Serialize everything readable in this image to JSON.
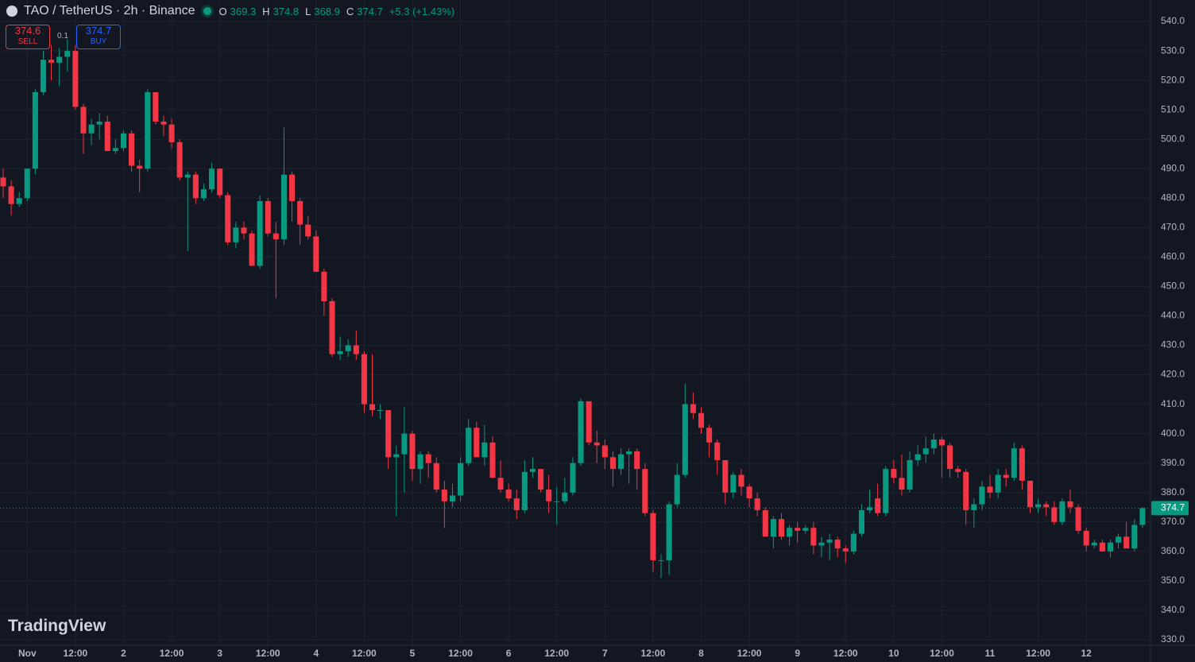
{
  "chart_data": {
    "type": "candlestick",
    "symbol": "TAO / TetherUS · 2h · Binance",
    "ohlc_header": [
      {
        "label": "O",
        "value": 369.3
      },
      {
        "label": "H",
        "value": 374.8
      },
      {
        "label": "L",
        "value": 368.9
      },
      {
        "label": "C",
        "value": 374.7
      }
    ],
    "change": "+5.3 (+1.43%)",
    "sell": {
      "price": 374.6,
      "label": "SELL"
    },
    "buy": {
      "price": 374.7,
      "label": "BUY"
    },
    "spread": 0.1,
    "brand": "TradingView",
    "last_price": 374.7,
    "up_color": "#089981",
    "down_color": "#f23645",
    "grid": true,
    "ylim": [
      328.1,
      547.3
    ],
    "yticks": [
      {
        "value": 330,
        "label": "330.0"
      },
      {
        "value": 340,
        "label": "340.0"
      },
      {
        "value": 350,
        "label": "350.0"
      },
      {
        "value": 360,
        "label": "360.0"
      },
      {
        "value": 370,
        "label": "370.0"
      },
      {
        "value": 380,
        "label": "380.0"
      },
      {
        "value": 390,
        "label": "390.0"
      },
      {
        "value": 400,
        "label": "400.0"
      },
      {
        "value": 410,
        "label": "410.0"
      },
      {
        "value": 420,
        "label": "420.0"
      },
      {
        "value": 430,
        "label": "430.0"
      },
      {
        "value": 440,
        "label": "440.0"
      },
      {
        "value": 450,
        "label": "450.0"
      },
      {
        "value": 460,
        "label": "460.0"
      },
      {
        "value": 470,
        "label": "470.0"
      },
      {
        "value": 480,
        "label": "480.0"
      },
      {
        "value": 490,
        "label": "490.0"
      },
      {
        "value": 500,
        "label": "500.0"
      },
      {
        "value": 510,
        "label": "510.0"
      },
      {
        "value": 520,
        "label": "520.0"
      },
      {
        "value": 530,
        "label": "530.0"
      },
      {
        "value": 540,
        "label": "540.0"
      }
    ],
    "xticks": [
      {
        "value": 3,
        "label": "Nov"
      },
      {
        "value": 9,
        "label": "12:00"
      },
      {
        "value": 15,
        "label": "2"
      },
      {
        "value": 21,
        "label": "12:00"
      },
      {
        "value": 27,
        "label": "3"
      },
      {
        "value": 33,
        "label": "12:00"
      },
      {
        "value": 39,
        "label": "4"
      },
      {
        "value": 45,
        "label": "12:00"
      },
      {
        "value": 51,
        "label": "5"
      },
      {
        "value": 57,
        "label": "12:00"
      },
      {
        "value": 63,
        "label": "6"
      },
      {
        "value": 69,
        "label": "12:00"
      },
      {
        "value": 75,
        "label": "7"
      },
      {
        "value": 81,
        "label": "12:00"
      },
      {
        "value": 87,
        "label": "8"
      },
      {
        "value": 93,
        "label": "12:00"
      },
      {
        "value": 99,
        "label": "9"
      },
      {
        "value": 105,
        "label": "12:00"
      },
      {
        "value": 111,
        "label": "10"
      },
      {
        "value": 117,
        "label": "12:00"
      },
      {
        "value": 123,
        "label": "11"
      },
      {
        "value": 129,
        "label": "12:00"
      },
      {
        "value": 135,
        "label": "12"
      }
    ],
    "open": [
      487,
      484,
      478,
      480,
      490,
      516,
      527,
      526,
      528,
      530,
      511,
      502,
      505,
      506,
      496,
      497,
      502,
      491,
      490,
      516,
      506,
      505,
      499,
      487,
      488,
      480,
      483,
      490,
      481,
      465,
      470,
      468,
      457,
      479,
      468,
      466,
      488,
      479,
      471,
      467,
      455,
      445,
      427,
      428,
      430,
      427,
      410,
      408,
      408,
      392,
      393,
      400,
      388,
      393,
      390,
      381,
      377,
      379,
      390,
      402,
      392,
      397,
      385,
      381,
      378,
      374,
      387,
      388,
      381,
      377,
      377,
      380,
      390,
      411,
      397,
      396,
      392,
      388,
      393,
      394,
      388,
      373,
      357,
      357,
      376,
      386,
      410,
      407,
      402,
      397,
      391,
      380,
      386,
      382,
      378,
      374,
      365,
      371,
      365,
      368,
      367,
      368,
      362,
      363,
      364,
      361,
      360,
      366,
      374,
      378,
      373,
      388,
      385,
      381,
      391,
      393,
      395,
      398,
      396,
      388,
      387,
      374,
      376,
      382,
      380,
      386,
      385,
      395,
      384,
      375,
      376,
      375,
      370,
      377,
      375,
      367,
      362,
      363,
      360,
      363,
      365,
      361,
      369
    ],
    "high": [
      490,
      486,
      482,
      490,
      517,
      530,
      532,
      531,
      534,
      532,
      512,
      507,
      509,
      508,
      500,
      503,
      503,
      493,
      517,
      516,
      508,
      507,
      500,
      489,
      489,
      485,
      492,
      490,
      482,
      472,
      472,
      469,
      481,
      480,
      472,
      504,
      489,
      480,
      474,
      469,
      456,
      446,
      433,
      432,
      435,
      428,
      427,
      410,
      408,
      396,
      409,
      401,
      394,
      394,
      392,
      384,
      383,
      392,
      405,
      404,
      403,
      399,
      391,
      383,
      381,
      391,
      392,
      388,
      386,
      382,
      385,
      392,
      412,
      411,
      401,
      398,
      394,
      395,
      395,
      395,
      390,
      374,
      359,
      377,
      390,
      417,
      414,
      409,
      403,
      398,
      391,
      387,
      388,
      383,
      380,
      375,
      372,
      373,
      369,
      370,
      369,
      370,
      365,
      366,
      365,
      362,
      367,
      376,
      381,
      383,
      389,
      391,
      393,
      394,
      396,
      399,
      400,
      399,
      397,
      389,
      388,
      378,
      384,
      386,
      388,
      388,
      397,
      396,
      384,
      378,
      377,
      377,
      378,
      381,
      376,
      368,
      364,
      364,
      364,
      366,
      370,
      371,
      375
    ],
    "low": [
      480,
      474,
      477,
      479,
      488,
      515,
      520,
      518,
      523,
      510,
      495,
      498,
      500,
      496,
      495,
      496,
      489,
      482,
      489,
      505,
      501,
      497,
      486,
      462,
      478,
      479,
      482,
      480,
      464,
      463,
      466,
      457,
      456,
      467,
      446,
      464,
      472,
      464,
      466,
      455,
      440,
      426,
      425,
      426,
      425,
      407,
      406,
      405,
      388,
      372,
      380,
      384,
      383,
      385,
      380,
      368,
      375,
      377,
      389,
      392,
      389,
      385,
      380,
      377,
      371,
      373,
      385,
      380,
      373,
      369,
      376,
      379,
      389,
      396,
      390,
      388,
      382,
      386,
      383,
      381,
      372,
      353,
      351,
      352,
      375,
      385,
      405,
      400,
      392,
      386,
      376,
      378,
      379,
      375,
      372,
      366,
      361,
      364,
      362,
      363,
      366,
      359,
      358,
      357,
      358,
      356,
      359,
      365,
      373,
      372,
      372,
      383,
      379,
      380,
      389,
      390,
      393,
      385,
      385,
      385,
      369,
      368,
      374,
      378,
      378,
      382,
      384,
      381,
      373,
      373,
      372,
      369,
      369,
      373,
      366,
      360,
      361,
      360,
      358,
      361,
      362,
      360,
      368
    ],
    "close": [
      484,
      478,
      480,
      490,
      516,
      527,
      526,
      528,
      530,
      511,
      502,
      505,
      506,
      496,
      497,
      502,
      491,
      490,
      516,
      506,
      505,
      499,
      487,
      488,
      480,
      483,
      490,
      481,
      465,
      470,
      468,
      457,
      479,
      468,
      466,
      488,
      479,
      471,
      467,
      455,
      445,
      427,
      428,
      430,
      427,
      410,
      408,
      408,
      392,
      393,
      400,
      388,
      393,
      390,
      381,
      377,
      379,
      390,
      402,
      392,
      397,
      385,
      381,
      378,
      374,
      387,
      388,
      381,
      377,
      377,
      380,
      390,
      411,
      397,
      396,
      392,
      388,
      393,
      394,
      388,
      373,
      357,
      357,
      376,
      386,
      410,
      407,
      402,
      397,
      391,
      380,
      386,
      382,
      378,
      374,
      365,
      371,
      365,
      368,
      367,
      368,
      362,
      363,
      364,
      361,
      360,
      366,
      374,
      375,
      373,
      388,
      385,
      381,
      391,
      393,
      395,
      398,
      396,
      388,
      387,
      374,
      376,
      382,
      380,
      386,
      385,
      395,
      384,
      375,
      376,
      375,
      370,
      377,
      375,
      367,
      362,
      363,
      360,
      363,
      365,
      361,
      369,
      374.7
    ]
  }
}
